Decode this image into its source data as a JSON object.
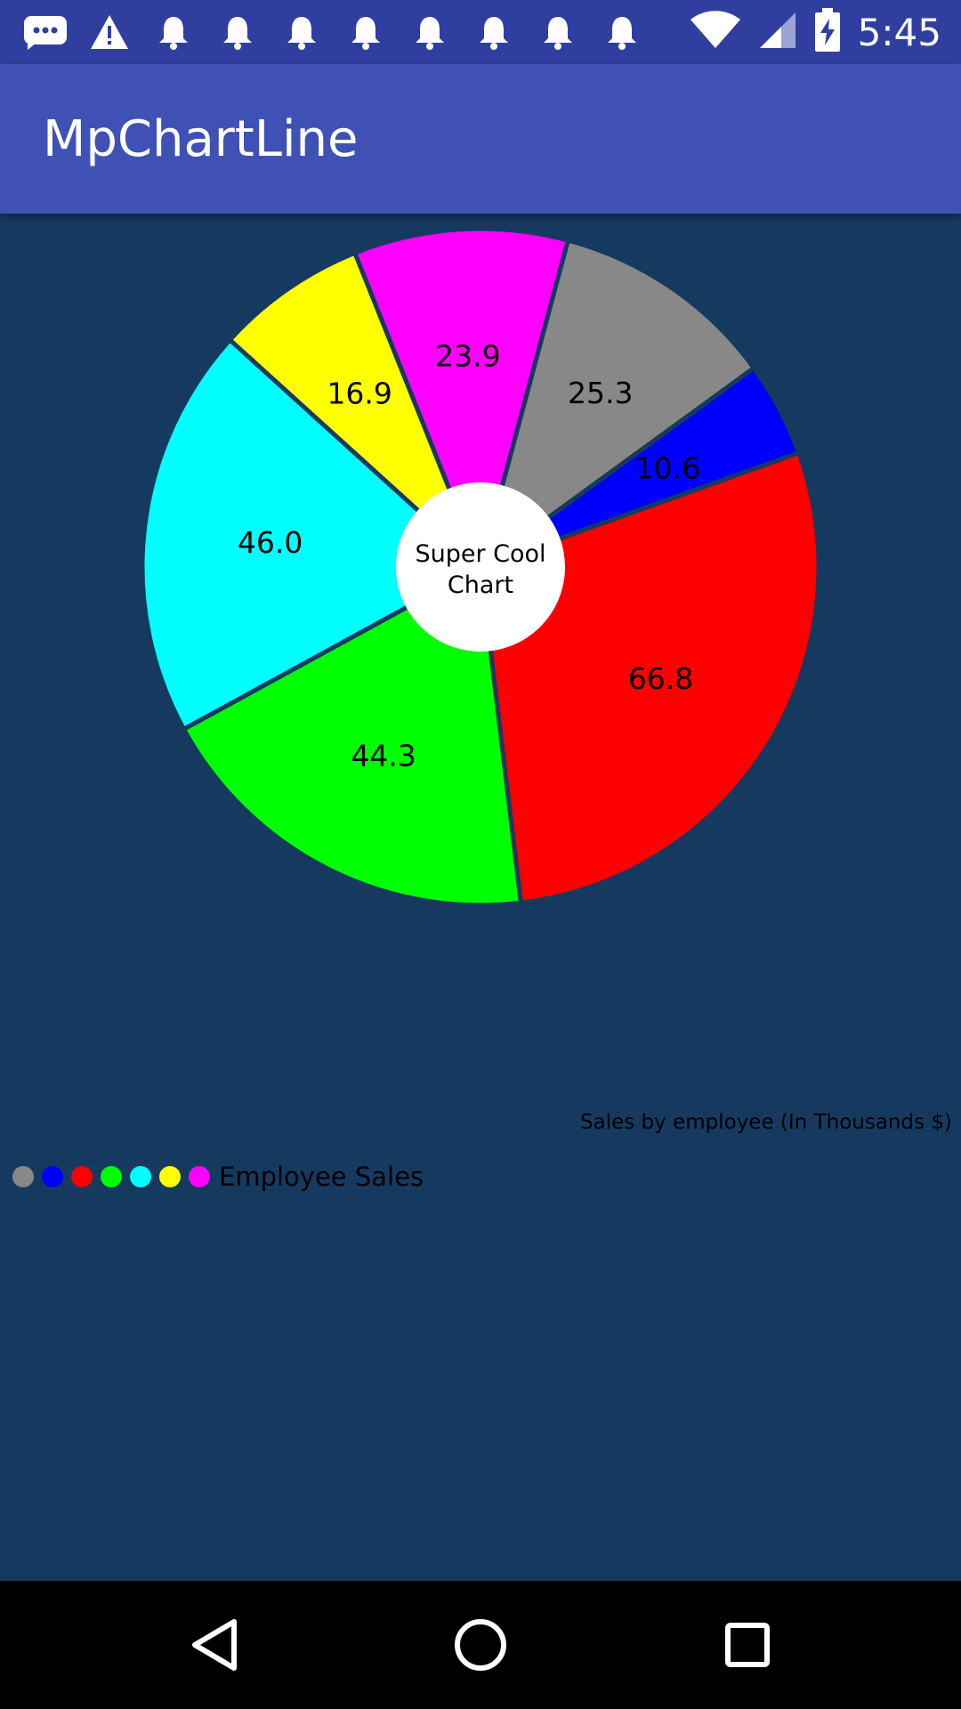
{
  "status_bar": {
    "time": "5:45",
    "left_icons": [
      "message-icon",
      "warning-icon",
      "bell-icon",
      "bell-icon",
      "bell-icon",
      "bell-icon",
      "bell-icon",
      "bell-icon",
      "bell-icon",
      "bell-icon"
    ],
    "right_icons": [
      "wifi-icon",
      "cell-signal-icon",
      "battery-charging-icon"
    ]
  },
  "app_bar": {
    "title": "MpChartLine"
  },
  "chart_data": {
    "type": "pie",
    "center_text_line1": "Super Cool",
    "center_text_line2": "Chart",
    "description": "Sales by employee (In Thousands $)",
    "legend_label": "Employee Sales",
    "legend_placement": "bottom-left",
    "slices": [
      {
        "value": 25.3,
        "color": "#888888"
      },
      {
        "value": 10.6,
        "color": "#0000ff"
      },
      {
        "value": 66.8,
        "color": "#ff0000"
      },
      {
        "value": 44.3,
        "color": "#00ff00"
      },
      {
        "value": 46.0,
        "color": "#00ffff"
      },
      {
        "value": 16.9,
        "color": "#ffff00"
      },
      {
        "value": 23.9,
        "color": "#ff00ff"
      }
    ]
  },
  "nav_bar": {
    "buttons": [
      "back-icon",
      "home-icon",
      "recents-icon"
    ]
  }
}
